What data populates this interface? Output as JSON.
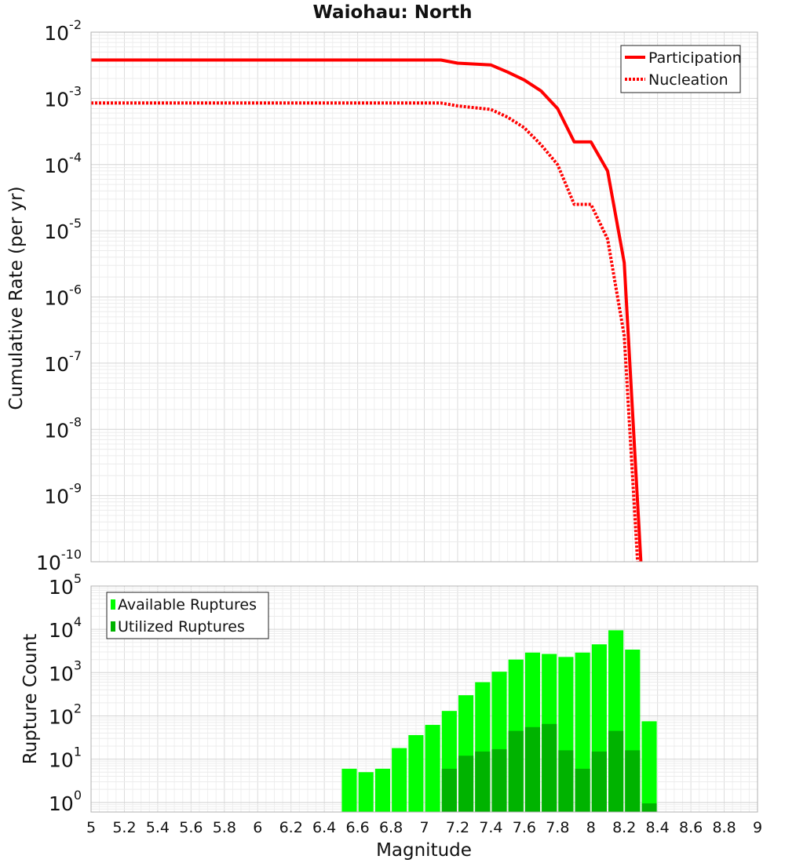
{
  "chart_data": [
    {
      "type": "line",
      "title": "Waiohau: North",
      "xlabel": "",
      "ylabel": "Cumulative Rate (per yr)",
      "yscale": "log",
      "xlim": [
        5,
        9
      ],
      "ylim": [
        1e-10,
        0.01
      ],
      "grid": true,
      "legend": "top-right",
      "x_ticks": [
        "5",
        "5.2",
        "5.4",
        "5.6",
        "5.8",
        "6",
        "6.2",
        "6.4",
        "6.6",
        "6.8",
        "7",
        "7.2",
        "7.4",
        "7.6",
        "7.8",
        "8",
        "8.2",
        "8.4",
        "8.6",
        "8.8",
        "9"
      ],
      "y_ticks": [
        {
          "base": "10",
          "exp": "-2",
          "value": 0.01
        },
        {
          "base": "10",
          "exp": "-3",
          "value": 0.001
        },
        {
          "base": "10",
          "exp": "-4",
          "value": 0.0001
        },
        {
          "base": "10",
          "exp": "-5",
          "value": 1e-05
        },
        {
          "base": "10",
          "exp": "-6",
          "value": 1e-06
        },
        {
          "base": "10",
          "exp": "-7",
          "value": 1e-07
        },
        {
          "base": "10",
          "exp": "-8",
          "value": 1e-08
        },
        {
          "base": "10",
          "exp": "-9",
          "value": 1e-09
        },
        {
          "base": "10",
          "exp": "-10",
          "value": 1e-10
        }
      ],
      "series": [
        {
          "name": "Participation",
          "color": "#ff0000",
          "style": "solid",
          "x": [
            5.0,
            7.1,
            7.2,
            7.4,
            7.5,
            7.6,
            7.7,
            7.8,
            7.9,
            8.0,
            8.1,
            8.2,
            8.3
          ],
          "y": [
            0.0038,
            0.0038,
            0.0034,
            0.0032,
            0.0025,
            0.0019,
            0.0013,
            0.0007,
            0.00022,
            0.00022,
            8e-05,
            3.3e-06,
            1e-10
          ]
        },
        {
          "name": "Nucleation",
          "color": "#ff0000",
          "style": "dotted",
          "x": [
            5.0,
            7.1,
            7.2,
            7.4,
            7.5,
            7.6,
            7.7,
            7.8,
            7.9,
            8.0,
            8.1,
            8.2,
            8.28
          ],
          "y": [
            0.00085,
            0.00085,
            0.00077,
            0.00068,
            0.00052,
            0.00036,
            0.0002,
            0.0001,
            2.5e-05,
            2.5e-05,
            7.5e-06,
            2.6e-07,
            1e-10
          ]
        }
      ]
    },
    {
      "type": "bar",
      "title": "",
      "xlabel": "Magnitude",
      "ylabel": "Rupture Count",
      "yscale": "log",
      "xlim": [
        5,
        9
      ],
      "ylim": [
        0.6,
        100000
      ],
      "grid": true,
      "legend": "top-left",
      "x_ticks": [
        "5",
        "5.2",
        "5.4",
        "5.6",
        "5.8",
        "6",
        "6.2",
        "6.4",
        "6.6",
        "6.8",
        "7",
        "7.2",
        "7.4",
        "7.6",
        "7.8",
        "8",
        "8.2",
        "8.4",
        "8.6",
        "8.8",
        "9"
      ],
      "y_ticks": [
        {
          "base": "10",
          "exp": "5",
          "value": 100000
        },
        {
          "base": "10",
          "exp": "4",
          "value": 10000
        },
        {
          "base": "10",
          "exp": "3",
          "value": 1000
        },
        {
          "base": "10",
          "exp": "2",
          "value": 100
        },
        {
          "base": "10",
          "exp": "1",
          "value": 10
        },
        {
          "base": "10",
          "exp": "0",
          "value": 1
        }
      ],
      "categories": [
        6.55,
        6.65,
        6.75,
        6.85,
        6.95,
        7.05,
        7.15,
        7.25,
        7.35,
        7.45,
        7.55,
        7.65,
        7.75,
        7.85,
        7.95,
        8.05,
        8.15,
        8.25,
        8.35
      ],
      "series": [
        {
          "name": "Available Ruptures",
          "color": "#00ff00",
          "values": [
            6,
            5,
            6,
            18,
            36,
            62,
            130,
            300,
            600,
            1050,
            2000,
            2900,
            2700,
            2300,
            2900,
            4500,
            9500,
            3400,
            75
          ]
        },
        {
          "name": "Utilized Ruptures",
          "color": "#00b300",
          "values": [
            0,
            0,
            0,
            0,
            0,
            0,
            6,
            12,
            15,
            17,
            45,
            55,
            65,
            16,
            6,
            15,
            45,
            16,
            0.95
          ]
        }
      ]
    }
  ]
}
